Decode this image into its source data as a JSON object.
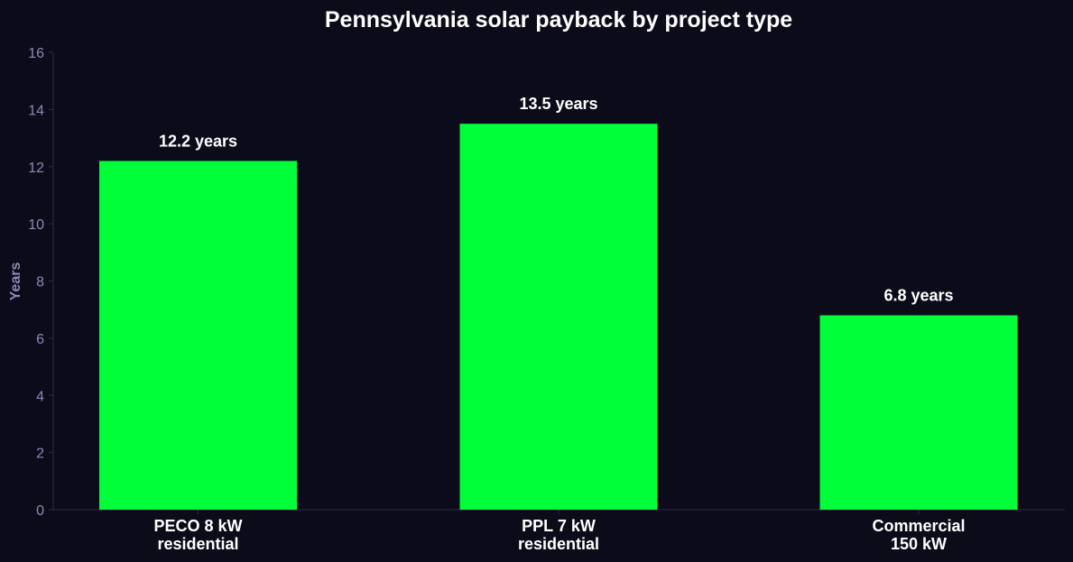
{
  "chart_data": {
    "type": "bar",
    "title": "Pennsylvania solar payback by project type",
    "xlabel": "",
    "ylabel": "Years",
    "ylim": [
      0,
      16
    ],
    "yticks": [
      0,
      2,
      4,
      6,
      8,
      10,
      12,
      14,
      16
    ],
    "categories": [
      [
        "PECO 8 kW",
        "residential"
      ],
      [
        "PPL 7 kW",
        "residential"
      ],
      [
        "Commercial",
        "150 kW"
      ]
    ],
    "values": [
      12.2,
      13.5,
      6.8
    ],
    "data_labels": [
      "12.2 years",
      "13.5 years",
      "6.8 years"
    ],
    "grid": false,
    "legend": "none",
    "colors": {
      "background": "#0b0b1a",
      "bar": "#00ff38",
      "axis": "#2e2e4a",
      "tick_text": "#8b8bb4",
      "label_text": "#ffffff"
    }
  }
}
